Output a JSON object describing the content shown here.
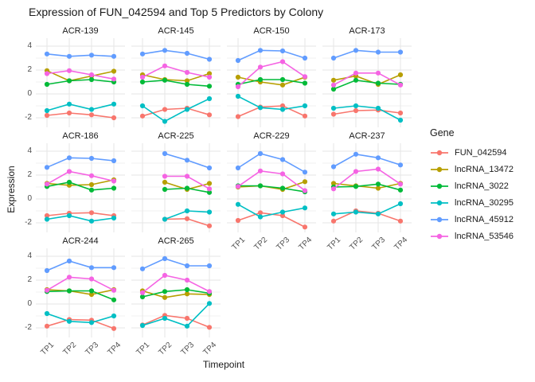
{
  "chart_data": {
    "type": "line",
    "title": "Expression of FUN_042594 and Top 5 Predictors by Colony",
    "xlabel": "Timepoint",
    "ylabel": "Expression",
    "x_categories": [
      "TP1",
      "TP2",
      "TP3",
      "TP4"
    ],
    "yticks": [
      4,
      2,
      0,
      -2
    ],
    "ylim": [
      -2.67,
      4.67
    ],
    "grid": "major-and-minor, light grey on white",
    "legend_position": "right",
    "legend_title": "Gene",
    "genes": [
      {
        "name": "FUN_042594",
        "color": "#F8766D"
      },
      {
        "name": "lncRNA_13472",
        "color": "#B79F00"
      },
      {
        "name": "lncRNA_3022",
        "color": "#00BA38"
      },
      {
        "name": "lncRNA_30295",
        "color": "#00BFC4"
      },
      {
        "name": "lncRNA_45912",
        "color": "#619CFF"
      },
      {
        "name": "lncRNA_53546",
        "color": "#F564E3"
      }
    ],
    "facets": [
      {
        "label": "ACR-139",
        "series": {
          "FUN_042594": [
            -1.8,
            -1.6,
            -1.75,
            -2.0
          ],
          "lncRNA_13472": [
            1.95,
            1.1,
            1.5,
            1.9
          ],
          "lncRNA_3022": [
            0.8,
            1.1,
            1.2,
            1.0
          ],
          "lncRNA_30295": [
            -1.4,
            -0.85,
            -1.3,
            -0.85
          ],
          "lncRNA_45912": [
            3.35,
            3.15,
            3.25,
            3.15
          ],
          "lncRNA_53546": [
            1.7,
            1.95,
            1.6,
            1.25
          ]
        }
      },
      {
        "label": "ACR-145",
        "series": {
          "FUN_042594": [
            -1.85,
            -1.3,
            -1.2,
            -1.75
          ],
          "lncRNA_13472": [
            1.6,
            1.2,
            1.1,
            1.7
          ],
          "lncRNA_3022": [
            1.0,
            1.15,
            0.8,
            0.65
          ],
          "lncRNA_30295": [
            -1.0,
            -2.3,
            -1.3,
            -0.4
          ],
          "lncRNA_45912": [
            3.35,
            3.65,
            3.4,
            2.9
          ],
          "lncRNA_53546": [
            1.4,
            2.35,
            1.8,
            1.4
          ]
        }
      },
      {
        "label": "ACR-150",
        "series": {
          "FUN_042594": [
            -1.9,
            -1.1,
            -1.0,
            -1.85
          ],
          "lncRNA_13472": [
            1.4,
            1.0,
            0.75,
            1.4
          ],
          "lncRNA_3022": [
            0.8,
            1.2,
            1.2,
            0.9
          ],
          "lncRNA_30295": [
            -0.2,
            -1.15,
            -1.3,
            -1.0
          ],
          "lncRNA_45912": [
            2.8,
            3.65,
            3.6,
            3.0
          ],
          "lncRNA_53546": [
            0.6,
            2.25,
            2.7,
            1.45
          ]
        }
      },
      {
        "label": "ACR-173",
        "series": {
          "FUN_042594": [
            -1.7,
            -1.4,
            -1.35,
            -1.6
          ],
          "lncRNA_13472": [
            1.15,
            1.5,
            0.8,
            1.6
          ],
          "lncRNA_3022": [
            0.4,
            1.15,
            0.9,
            0.8
          ],
          "lncRNA_30295": [
            -1.2,
            -1.0,
            -1.2,
            -2.2
          ],
          "lncRNA_45912": [
            3.0,
            3.65,
            3.5,
            3.5
          ],
          "lncRNA_53546": [
            0.75,
            1.75,
            1.75,
            0.75
          ]
        }
      },
      {
        "label": "ACR-186",
        "series": {
          "FUN_042594": [
            -1.4,
            -1.2,
            -1.15,
            -1.4
          ],
          "lncRNA_13472": [
            1.3,
            1.15,
            1.2,
            1.6
          ],
          "lncRNA_3022": [
            1.05,
            1.4,
            0.75,
            0.9
          ],
          "lncRNA_30295": [
            -1.7,
            -1.4,
            -1.85,
            -1.6
          ],
          "lncRNA_45912": [
            2.65,
            3.45,
            3.4,
            3.2
          ],
          "lncRNA_53546": [
            1.25,
            2.3,
            1.95,
            1.5
          ]
        }
      },
      {
        "label": "ACR-225",
        "series": {
          "FUN_042594": [
            null,
            -1.7,
            -1.65,
            -2.25
          ],
          "lncRNA_13472": [
            null,
            1.4,
            0.8,
            1.3
          ],
          "lncRNA_3022": [
            null,
            0.8,
            0.9,
            0.55
          ],
          "lncRNA_30295": [
            null,
            -1.7,
            -1.0,
            -1.1
          ],
          "lncRNA_45912": [
            null,
            3.8,
            3.25,
            2.6
          ],
          "lncRNA_53546": [
            null,
            1.9,
            1.9,
            0.85
          ]
        }
      },
      {
        "label": "ACR-229",
        "series": {
          "FUN_042594": [
            -1.8,
            -1.15,
            -1.4,
            -2.35
          ],
          "lncRNA_13472": [
            1.0,
            1.1,
            0.8,
            1.45
          ],
          "lncRNA_3022": [
            1.1,
            1.1,
            0.9,
            0.6
          ],
          "lncRNA_30295": [
            -0.45,
            -1.5,
            -1.1,
            -0.75
          ],
          "lncRNA_45912": [
            2.6,
            3.8,
            3.3,
            2.25
          ],
          "lncRNA_53546": [
            1.05,
            2.35,
            2.1,
            0.7
          ]
        }
      },
      {
        "label": "ACR-237",
        "series": {
          "FUN_042594": [
            -1.85,
            -1.0,
            -1.2,
            -1.85
          ],
          "lncRNA_13472": [
            1.3,
            1.1,
            0.9,
            1.3
          ],
          "lncRNA_3022": [
            1.0,
            1.05,
            1.25,
            0.75
          ],
          "lncRNA_30295": [
            -1.25,
            -1.1,
            -1.25,
            -0.4
          ],
          "lncRNA_45912": [
            2.7,
            3.75,
            3.45,
            2.85
          ],
          "lncRNA_53546": [
            0.85,
            2.3,
            2.5,
            1.25
          ]
        }
      },
      {
        "label": "ACR-244",
        "series": {
          "FUN_042594": [
            -1.85,
            -1.3,
            -1.35,
            -2.05
          ],
          "lncRNA_13472": [
            1.2,
            1.1,
            0.8,
            1.2
          ],
          "lncRNA_3022": [
            1.05,
            1.1,
            1.1,
            0.35
          ],
          "lncRNA_30295": [
            -0.8,
            -1.45,
            -1.55,
            -1.0
          ],
          "lncRNA_45912": [
            2.8,
            3.6,
            3.05,
            3.05
          ],
          "lncRNA_53546": [
            1.15,
            2.25,
            2.1,
            1.15
          ]
        }
      },
      {
        "label": "ACR-265",
        "series": {
          "FUN_042594": [
            -1.75,
            -0.95,
            -1.2,
            -1.95
          ],
          "lncRNA_13472": [
            1.1,
            0.55,
            0.85,
            0.8
          ],
          "lncRNA_3022": [
            0.6,
            1.05,
            1.2,
            0.9
          ],
          "lncRNA_30295": [
            -1.8,
            -1.2,
            -1.85,
            0.05
          ],
          "lncRNA_45912": [
            2.95,
            3.8,
            3.2,
            3.2
          ],
          "lncRNA_53546": [
            0.95,
            2.4,
            2.0,
            1.05
          ]
        }
      }
    ]
  }
}
